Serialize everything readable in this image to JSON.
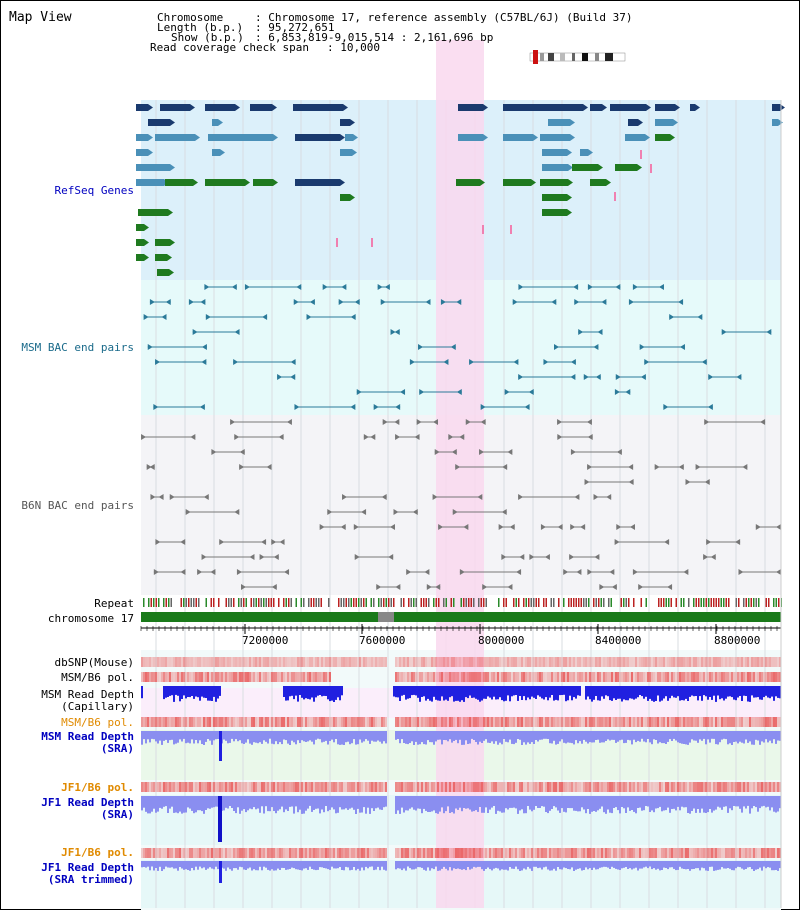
{
  "map_title": "Map View",
  "info": {
    "chromosome_key": "Chromosome",
    "chromosome_value": "Chromosome 17, reference assembly (C57BL/6J) (Build 37)",
    "length_key": "Length (b.p.)",
    "length_value": "95,272,651",
    "show_key": "Show (b.p.)",
    "show_value": "6,853,819-9,015,514 : 2,161,696 bp",
    "coverage_key": "Read coverage check span",
    "coverage_value": "10,000"
  },
  "tracks": {
    "refseq": "RefSeq Genes",
    "msm_bac": "MSM BAC end pairs",
    "b6n_bac": "B6N BAC end pairs",
    "repeat": "Repeat",
    "chromosome": "chromosome 17",
    "dbsnp": "dbSNP(Mouse)",
    "msm_b6_pol_1": "MSM/B6 pol.",
    "msm_read_depth_cap_1": "MSM Read Depth",
    "msm_read_depth_cap_2": "(Capillary)",
    "msm_b6_pol_2": "MSM/B6 pol.",
    "msm_read_depth_sra_1": "MSM Read Depth",
    "msm_read_depth_sra_2": "(SRA)",
    "jf1_b6_pol_1": "JF1/B6 pol.",
    "jf1_read_depth_1": "JF1 Read Depth",
    "jf1_read_depth_2": "(SRA)",
    "jf1_b6_pol_2": "JF1/B6 pol.",
    "jf1_read_depth_tr_1": "JF1 Read Depth",
    "jf1_read_depth_tr_2": "(SRA trimmed)"
  },
  "axis": {
    "ticks": [
      "7200000",
      "7600000",
      "8000000",
      "8400000",
      "8800000"
    ]
  },
  "colors": {
    "refseq_bg": "#dcf0fa",
    "msm_bg": "#e6fafa",
    "b6n_bg": "#f4f4f7",
    "highlight": "#f9d8ef",
    "gene_dark": "#1a3a6e",
    "gene_mid": "#4a90b8",
    "gene_green": "#1f7a1f",
    "bac_msm": "#2b7a99",
    "bac_b6n": "#777777",
    "chrom_bar": "#1a7a1a",
    "label_blue": "#0000c0",
    "label_teal": "#1a6a8a",
    "label_orange": "#e08a00",
    "depth_blue": "#2020e0",
    "depth_light": "#8a8ef0",
    "pol_red": "#e85050"
  }
}
